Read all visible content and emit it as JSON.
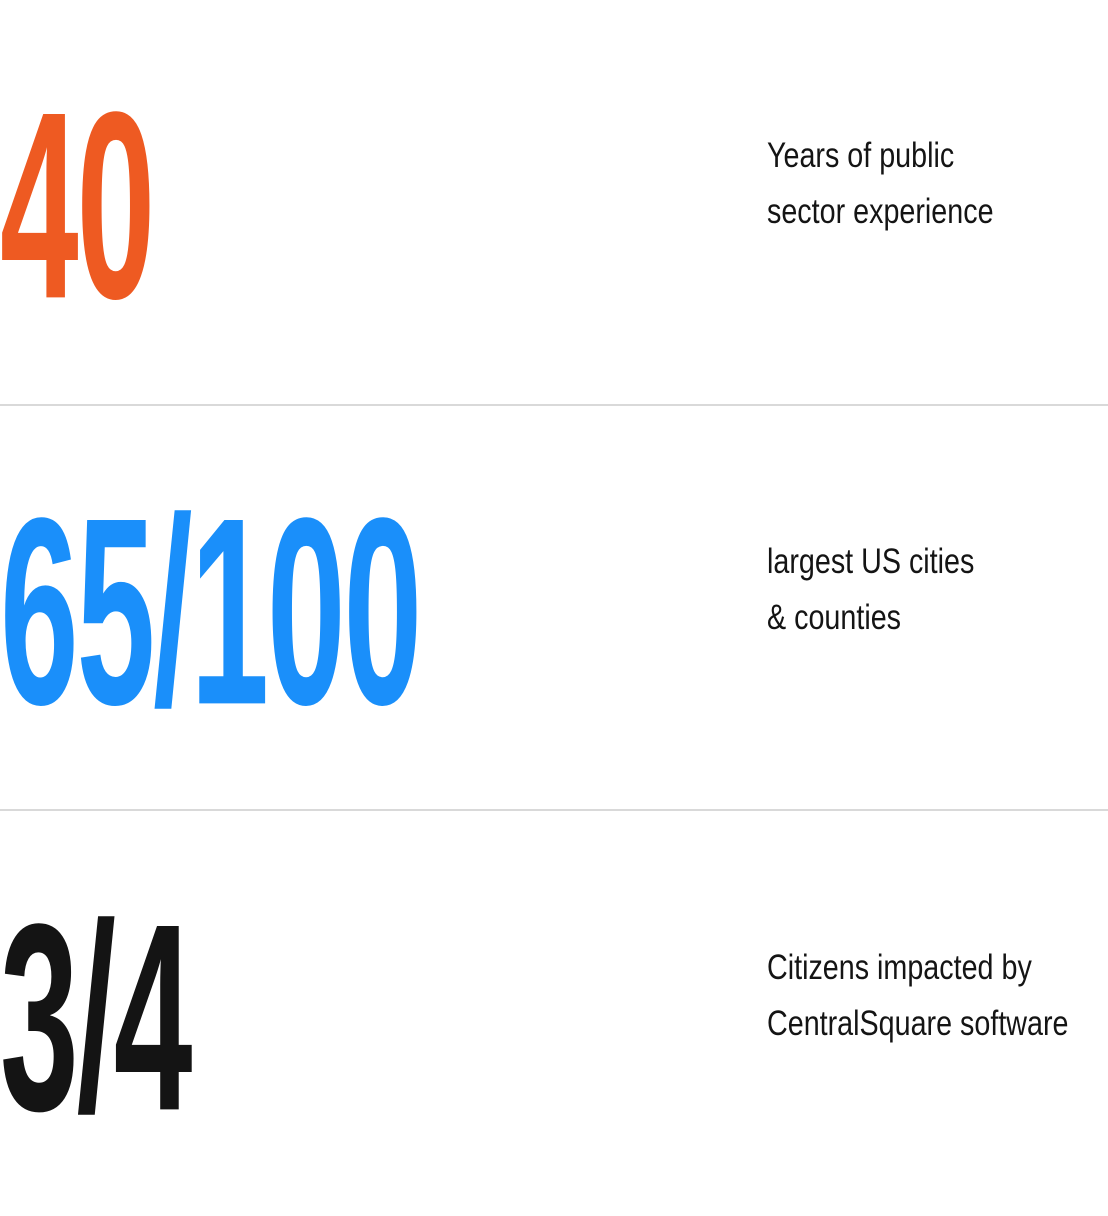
{
  "stats": [
    {
      "value": "40",
      "label_line1": "Years of public",
      "label_line2": "sector experience",
      "color": "#EE5A22"
    },
    {
      "value": "65/100",
      "label_line1": "largest US cities",
      "label_line2": "& counties",
      "color": "#1A8FFA"
    },
    {
      "value": "3/4",
      "label_line1": "Citizens impacted by",
      "label_line2": "CentralSquare software",
      "color": "#141414"
    }
  ]
}
